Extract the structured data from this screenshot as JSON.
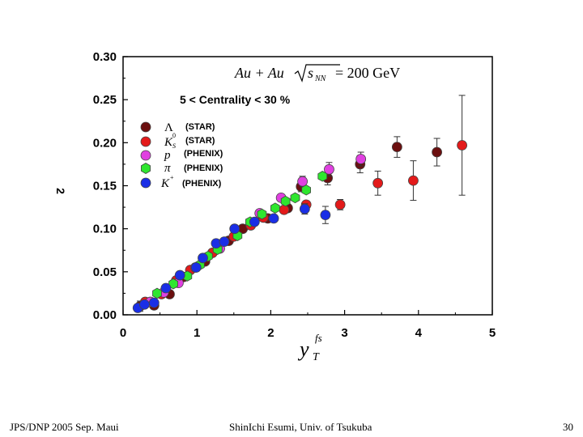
{
  "footer": {
    "left": "JPS/DNP 2005 Sep. Maui",
    "center": "ShinIchi Esumi, Univ. of Tsukuba",
    "right": "30"
  },
  "colors": {
    "lambda": "#6b0f0f",
    "k0s": "#e31a1a",
    "proton": "#e040e0",
    "pion": "#2ee62e",
    "kaon": "#1a2ee6"
  },
  "chart_data": {
    "type": "scatter",
    "title": "",
    "header": {
      "system": "Au + Au",
      "sqrt": "s",
      "sub": "NN",
      "energy": "= 200 GeV"
    },
    "centrality": "5 < Centrality < 30 %",
    "ylabel": "2",
    "xlabel": "y",
    "xlabel_sub": "T",
    "xlabel_sup": "fs",
    "xlim": [
      0,
      5
    ],
    "ylim": [
      0,
      0.3
    ],
    "xticks": [
      "0",
      "1",
      "2",
      "3",
      "4",
      "5"
    ],
    "yticks": [
      "0.00",
      "0.05",
      "0.10",
      "0.15",
      "0.20",
      "0.25",
      "0.30"
    ],
    "series": [
      {
        "key": "lambda",
        "name": "Λ",
        "exp": "(STAR)",
        "shape": "circle",
        "points": [
          {
            "x": 0.23,
            "y": 0.01,
            "e": 0.006
          },
          {
            "x": 0.42,
            "y": 0.011,
            "e": 0.005
          },
          {
            "x": 0.63,
            "y": 0.024,
            "e": 0.004
          },
          {
            "x": 0.82,
            "y": 0.044,
            "e": 0.004
          },
          {
            "x": 1.11,
            "y": 0.062,
            "e": 0.003
          },
          {
            "x": 1.43,
            "y": 0.086,
            "e": 0.003
          },
          {
            "x": 1.62,
            "y": 0.1,
            "e": 0.003
          },
          {
            "x": 1.96,
            "y": 0.112,
            "e": 0.004
          },
          {
            "x": 2.23,
            "y": 0.124,
            "e": 0.005
          },
          {
            "x": 2.41,
            "y": 0.149,
            "e": 0.006
          },
          {
            "x": 2.77,
            "y": 0.159,
            "e": 0.008
          },
          {
            "x": 3.21,
            "y": 0.175,
            "e": 0.01
          },
          {
            "x": 3.71,
            "y": 0.195,
            "e": 0.012
          },
          {
            "x": 4.25,
            "y": 0.189,
            "e": 0.016
          }
        ]
      },
      {
        "key": "k0s",
        "name": "K",
        "exp": "(STAR)",
        "shape": "circle",
        "points": [
          {
            "x": 0.3,
            "y": 0.015,
            "e": 0.004
          },
          {
            "x": 0.52,
            "y": 0.024,
            "e": 0.003
          },
          {
            "x": 0.72,
            "y": 0.04,
            "e": 0.003
          },
          {
            "x": 0.91,
            "y": 0.052,
            "e": 0.003
          },
          {
            "x": 1.21,
            "y": 0.072,
            "e": 0.003
          },
          {
            "x": 1.5,
            "y": 0.091,
            "e": 0.003
          },
          {
            "x": 1.73,
            "y": 0.104,
            "e": 0.003
          },
          {
            "x": 1.9,
            "y": 0.113,
            "e": 0.003
          },
          {
            "x": 2.18,
            "y": 0.122,
            "e": 0.004
          },
          {
            "x": 2.48,
            "y": 0.128,
            "e": 0.005
          },
          {
            "x": 2.94,
            "y": 0.128,
            "e": 0.006
          },
          {
            "x": 3.45,
            "y": 0.153,
            "e": 0.014
          },
          {
            "x": 3.93,
            "y": 0.156,
            "e": 0.023
          },
          {
            "x": 4.59,
            "y": 0.197,
            "e": 0.058
          }
        ]
      },
      {
        "key": "proton",
        "name": "p",
        "exp": "(PHENIX)",
        "shape": "circle",
        "points": [
          {
            "x": 0.37,
            "y": 0.015,
            "e": 0.004
          },
          {
            "x": 0.55,
            "y": 0.026,
            "e": 0.003
          },
          {
            "x": 0.75,
            "y": 0.037,
            "e": 0.003
          },
          {
            "x": 0.98,
            "y": 0.055,
            "e": 0.003
          },
          {
            "x": 1.31,
            "y": 0.077,
            "e": 0.003
          },
          {
            "x": 1.85,
            "y": 0.118,
            "e": 0.003
          },
          {
            "x": 2.14,
            "y": 0.136,
            "e": 0.004
          },
          {
            "x": 2.43,
            "y": 0.155,
            "e": 0.006
          },
          {
            "x": 2.79,
            "y": 0.169,
            "e": 0.008
          },
          {
            "x": 3.22,
            "y": 0.181,
            "e": 0.008
          }
        ]
      },
      {
        "key": "pion",
        "name": "π",
        "exp": "(PHENIX)",
        "shape": "hexagon",
        "points": [
          {
            "x": 0.46,
            "y": 0.025,
            "e": 0.003
          },
          {
            "x": 0.68,
            "y": 0.036,
            "e": 0.003
          },
          {
            "x": 0.87,
            "y": 0.045,
            "e": 0.003
          },
          {
            "x": 1.04,
            "y": 0.058,
            "e": 0.003
          },
          {
            "x": 1.15,
            "y": 0.068,
            "e": 0.003
          },
          {
            "x": 1.28,
            "y": 0.076,
            "e": 0.003
          },
          {
            "x": 1.55,
            "y": 0.092,
            "e": 0.003
          },
          {
            "x": 1.72,
            "y": 0.108,
            "e": 0.003
          },
          {
            "x": 1.88,
            "y": 0.117,
            "e": 0.003
          },
          {
            "x": 2.06,
            "y": 0.124,
            "e": 0.003
          },
          {
            "x": 2.2,
            "y": 0.132,
            "e": 0.003
          },
          {
            "x": 2.33,
            "y": 0.136,
            "e": 0.003
          },
          {
            "x": 2.48,
            "y": 0.145,
            "e": 0.004
          },
          {
            "x": 2.7,
            "y": 0.161,
            "e": 0.005
          }
        ]
      },
      {
        "key": "kaon",
        "name": "K",
        "exp": "(PHENIX)",
        "shape": "circle",
        "points": [
          {
            "x": 0.2,
            "y": 0.008,
            "e": 0.003
          },
          {
            "x": 0.29,
            "y": 0.012,
            "e": 0.003
          },
          {
            "x": 0.42,
            "y": 0.014,
            "e": 0.003
          },
          {
            "x": 0.58,
            "y": 0.031,
            "e": 0.003
          },
          {
            "x": 0.77,
            "y": 0.046,
            "e": 0.003
          },
          {
            "x": 0.99,
            "y": 0.055,
            "e": 0.003
          },
          {
            "x": 1.08,
            "y": 0.066,
            "e": 0.003
          },
          {
            "x": 1.26,
            "y": 0.083,
            "e": 0.003
          },
          {
            "x": 1.37,
            "y": 0.085,
            "e": 0.003
          },
          {
            "x": 1.51,
            "y": 0.1,
            "e": 0.003
          },
          {
            "x": 1.78,
            "y": 0.108,
            "e": 0.004
          },
          {
            "x": 2.04,
            "y": 0.112,
            "e": 0.005
          },
          {
            "x": 2.46,
            "y": 0.123,
            "e": 0.006
          },
          {
            "x": 2.74,
            "y": 0.116,
            "e": 0.01
          }
        ]
      }
    ]
  }
}
